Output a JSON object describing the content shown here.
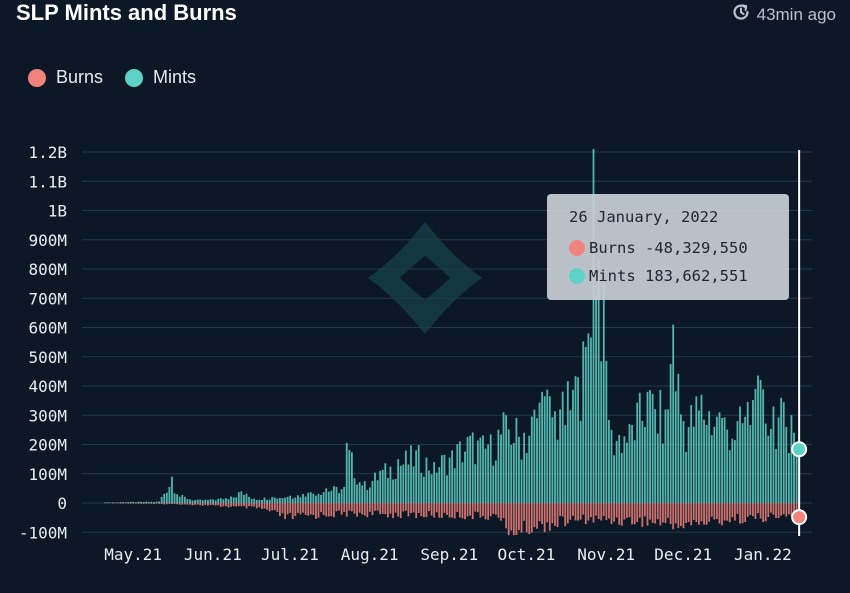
{
  "header": {
    "title": "SLP Mints and Burns",
    "updated": "43min ago",
    "updated_icon": "refresh-clock-icon"
  },
  "legend": {
    "items": [
      {
        "label": "Burns",
        "color": "#f0837b"
      },
      {
        "label": "Mints",
        "color": "#5fd2c7"
      }
    ]
  },
  "tooltip": {
    "date": "26 January, 2022",
    "burns_label": "Burns",
    "burns_value": "-48,329,550",
    "mints_label": "Mints",
    "mints_value": "183,662,551"
  },
  "chart_data": {
    "type": "bar",
    "title": "SLP Mints and Burns",
    "y_tick_labels": [
      "-100M",
      "0",
      "100M",
      "200M",
      "300M",
      "400M",
      "500M",
      "600M",
      "700M",
      "800M",
      "900M",
      "1B",
      "1.1B",
      "1.2B"
    ],
    "y_tick_values": [
      -100000000,
      0,
      100000000,
      200000000,
      300000000,
      400000000,
      500000000,
      600000000,
      700000000,
      800000000,
      900000000,
      1000000000,
      1100000000,
      1200000000
    ],
    "ylim": [
      -100000000,
      1200000000
    ],
    "x_tick_labels": [
      "May.21",
      "Jun.21",
      "Jul.21",
      "Aug.21",
      "Sep.21",
      "Oct.21",
      "Nov.21",
      "Dec.21",
      "Jan.22"
    ],
    "x_tick_dates": [
      "2021-05-01",
      "2021-06-01",
      "2021-07-01",
      "2021-08-01",
      "2021-09-01",
      "2021-10-01",
      "2021-11-01",
      "2021-12-01",
      "2022-01-01"
    ],
    "grid": true,
    "legend_position": "top-left",
    "series": [
      {
        "name": "Mints",
        "color": "#5fd2c7",
        "points": [
          [
            "2021-05-01",
            2000000
          ],
          [
            "2021-05-08",
            3000000
          ],
          [
            "2021-05-15",
            4000000
          ],
          [
            "2021-05-22",
            5000000
          ],
          [
            "2021-05-27",
            90000000
          ],
          [
            "2021-05-29",
            30000000
          ],
          [
            "2021-06-05",
            10000000
          ],
          [
            "2021-06-12",
            12000000
          ],
          [
            "2021-06-19",
            22000000
          ],
          [
            "2021-06-23",
            40000000
          ],
          [
            "2021-06-28",
            15000000
          ],
          [
            "2021-07-05",
            20000000
          ],
          [
            "2021-07-12",
            25000000
          ],
          [
            "2021-07-19",
            35000000
          ],
          [
            "2021-07-26",
            50000000
          ],
          [
            "2021-08-02",
            55000000
          ],
          [
            "2021-08-03",
            205000000
          ],
          [
            "2021-08-09",
            60000000
          ],
          [
            "2021-08-16",
            110000000
          ],
          [
            "2021-08-23",
            150000000
          ],
          [
            "2021-08-30",
            180000000
          ],
          [
            "2021-09-06",
            140000000
          ],
          [
            "2021-09-13",
            180000000
          ],
          [
            "2021-09-20",
            230000000
          ],
          [
            "2021-09-27",
            200000000
          ],
          [
            "2021-10-04",
            300000000
          ],
          [
            "2021-10-11",
            240000000
          ],
          [
            "2021-10-18",
            380000000
          ],
          [
            "2021-10-25",
            320000000
          ],
          [
            "2021-11-01",
            430000000
          ],
          [
            "2021-11-05",
            580000000
          ],
          [
            "2021-11-07",
            1210000000
          ],
          [
            "2021-11-14",
            250000000
          ],
          [
            "2021-11-21",
            270000000
          ],
          [
            "2021-11-28",
            380000000
          ],
          [
            "2021-12-05",
            320000000
          ],
          [
            "2021-12-08",
            610000000
          ],
          [
            "2021-12-12",
            280000000
          ],
          [
            "2021-12-19",
            370000000
          ],
          [
            "2021-12-26",
            310000000
          ],
          [
            "2022-01-02",
            280000000
          ],
          [
            "2022-01-09",
            390000000
          ],
          [
            "2022-01-16",
            330000000
          ],
          [
            "2022-01-23",
            300000000
          ],
          [
            "2022-01-26",
            183662551
          ]
        ]
      },
      {
        "name": "Burns",
        "color": "#f0837b",
        "points": [
          [
            "2021-05-01",
            -1000000
          ],
          [
            "2021-06-01",
            -5000000
          ],
          [
            "2021-07-01",
            -20000000
          ],
          [
            "2021-07-10",
            -55000000
          ],
          [
            "2021-08-01",
            -40000000
          ],
          [
            "2021-09-01",
            -45000000
          ],
          [
            "2021-10-01",
            -50000000
          ],
          [
            "2021-10-05",
            -110000000
          ],
          [
            "2021-11-01",
            -60000000
          ],
          [
            "2021-12-01",
            -70000000
          ],
          [
            "2021-12-10",
            -85000000
          ],
          [
            "2022-01-01",
            -60000000
          ],
          [
            "2022-01-26",
            -48329550
          ]
        ]
      }
    ]
  }
}
